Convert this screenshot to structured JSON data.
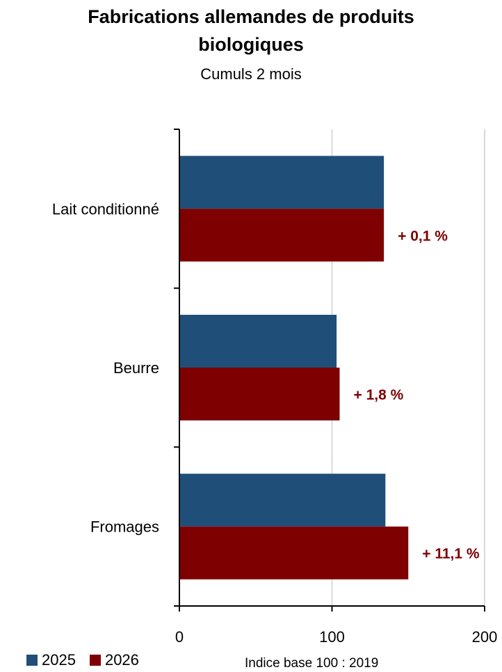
{
  "title_lines": [
    "Fabrications allemandes de produits",
    "biologiques"
  ],
  "subtitle": "Cumuls 2 mois",
  "axis_title": "Indice base 100 : 2019",
  "colors": {
    "2025": "#1f4e79",
    "2026": "#7f0000",
    "grid": "#d9d9d9",
    "axis": "#000000",
    "label": "#7f0000"
  },
  "chart_data": {
    "type": "bar",
    "orientation": "horizontal",
    "categories": [
      "Lait conditionné",
      "Beurre",
      "Fromages"
    ],
    "series": [
      {
        "name": "2025",
        "values": [
          134,
          103,
          135
        ]
      },
      {
        "name": "2026",
        "values": [
          134,
          105,
          150
        ]
      }
    ],
    "data_labels": [
      "+ 0,1 %",
      "+ 1,8 %",
      "+ 11,1 %"
    ],
    "xlim": [
      0,
      200
    ],
    "xticks": [
      0,
      100,
      200
    ],
    "grid": true,
    "legend": "bottom-left"
  }
}
